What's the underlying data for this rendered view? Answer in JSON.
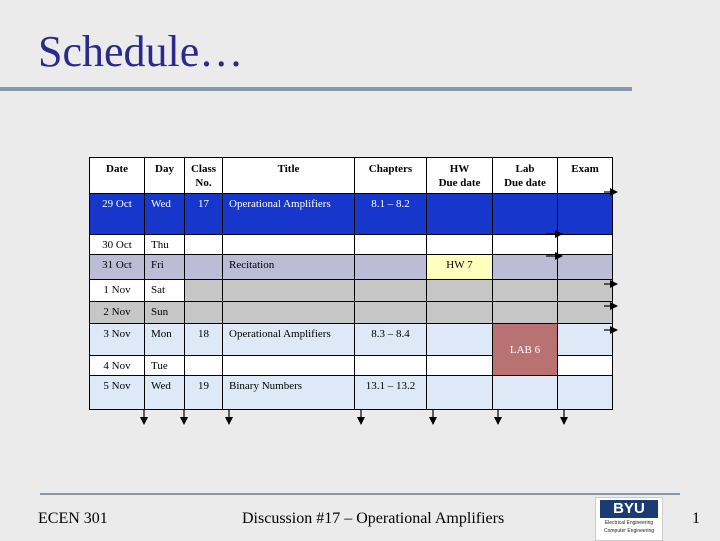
{
  "slide": {
    "title": "Schedule…",
    "footer_left": "ECEN 301",
    "footer_center": "Discussion #17 – Operational Amplifiers",
    "page_number": "1",
    "logo_brand": "BYU",
    "logo_line1": "Electrical Engineering",
    "logo_line2": "Computer Engineering"
  },
  "table": {
    "headers": {
      "date": "Date",
      "day": "Day",
      "class1": "Class",
      "class2": "No.",
      "title": "Title",
      "chapters": "Chapters",
      "hw1": "HW",
      "hw2": "Due date",
      "lab1": "Lab",
      "lab2": "Due date",
      "exam": "Exam"
    },
    "rows": [
      {
        "date": "29 Oct",
        "day": "Wed",
        "class_no": "17",
        "title": "Operational Amplifiers",
        "chapters": "8.1 – 8.2",
        "hw": "",
        "lab": "",
        "exam": ""
      },
      {
        "date": "30 Oct",
        "day": "Thu",
        "class_no": "",
        "title": "",
        "chapters": "",
        "hw": "",
        "lab": "",
        "exam": ""
      },
      {
        "date": "31 Oct",
        "day": "Fri",
        "class_no": "",
        "title": "Recitation",
        "chapters": "",
        "hw": "HW 7",
        "lab": "",
        "exam": ""
      },
      {
        "date": "1 Nov",
        "day": "Sat",
        "class_no": "",
        "title": "",
        "chapters": "",
        "hw": "",
        "lab": "",
        "exam": ""
      },
      {
        "date": "2 Nov",
        "day": "Sun",
        "class_no": "",
        "title": "",
        "chapters": "",
        "hw": "",
        "lab": "",
        "exam": ""
      },
      {
        "date": "3 Nov",
        "day": "Mon",
        "class_no": "18",
        "title": "Operational Amplifiers",
        "chapters": "8.3 – 8.4",
        "hw": "",
        "lab": "LAB 6",
        "exam": ""
      },
      {
        "date": "4 Nov",
        "day": "Tue",
        "class_no": "",
        "title": "",
        "chapters": "",
        "hw": "",
        "lab": "",
        "exam": ""
      },
      {
        "date": "5 Nov",
        "day": "Wed",
        "class_no": "19",
        "title": "Binary Numbers",
        "chapters": "13.1 – 13.2",
        "hw": "",
        "lab": "",
        "exam": ""
      }
    ]
  },
  "colors": {
    "title": "#2a2a8a",
    "current_row": "#1636cc",
    "weekend_row": "#c6c6c6",
    "recitation_row": "#bcbcd6",
    "future_row": "#dde9f6",
    "hw_due": "#fefebe",
    "lab_due": "#b87272"
  }
}
